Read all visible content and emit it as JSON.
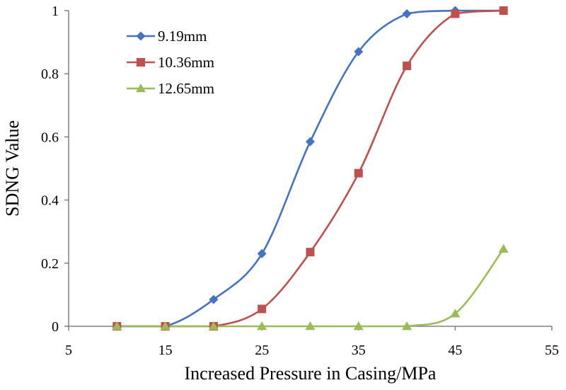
{
  "chart_data": {
    "type": "line",
    "title": "",
    "xlabel": "Increased Pressure in Casing/MPa",
    "ylabel": "SDNG Value",
    "xlim": [
      5,
      55
    ],
    "ylim": [
      0,
      1
    ],
    "x_ticks": [
      5,
      15,
      25,
      35,
      45,
      55
    ],
    "x_tick_labels": [
      "5",
      "15",
      "25",
      "35",
      "45",
      "55"
    ],
    "y_ticks": [
      0,
      0.2,
      0.4,
      0.6,
      0.8,
      1
    ],
    "y_tick_labels": [
      "0",
      "0.2",
      "0.4",
      "0.6",
      "0.8",
      "1"
    ],
    "grid": false,
    "legend_position": "top-left",
    "x": [
      10,
      15,
      20,
      25,
      30,
      35,
      40,
      45,
      50
    ],
    "series": [
      {
        "name": "9.19mm",
        "color": "#4472C4",
        "marker": "diamond",
        "values": [
          0,
          0,
          0.085,
          0.23,
          0.585,
          0.87,
          0.99,
          1.0,
          1.0
        ]
      },
      {
        "name": "10.36mm",
        "color": "#C0504D",
        "marker": "square",
        "values": [
          0,
          0,
          0,
          0.055,
          0.235,
          0.485,
          0.825,
          0.99,
          1.0
        ]
      },
      {
        "name": "12.65mm",
        "color": "#9BBB59",
        "marker": "triangle",
        "values": [
          0,
          0,
          0,
          0,
          0,
          0,
          0,
          0.04,
          0.245
        ]
      }
    ]
  }
}
